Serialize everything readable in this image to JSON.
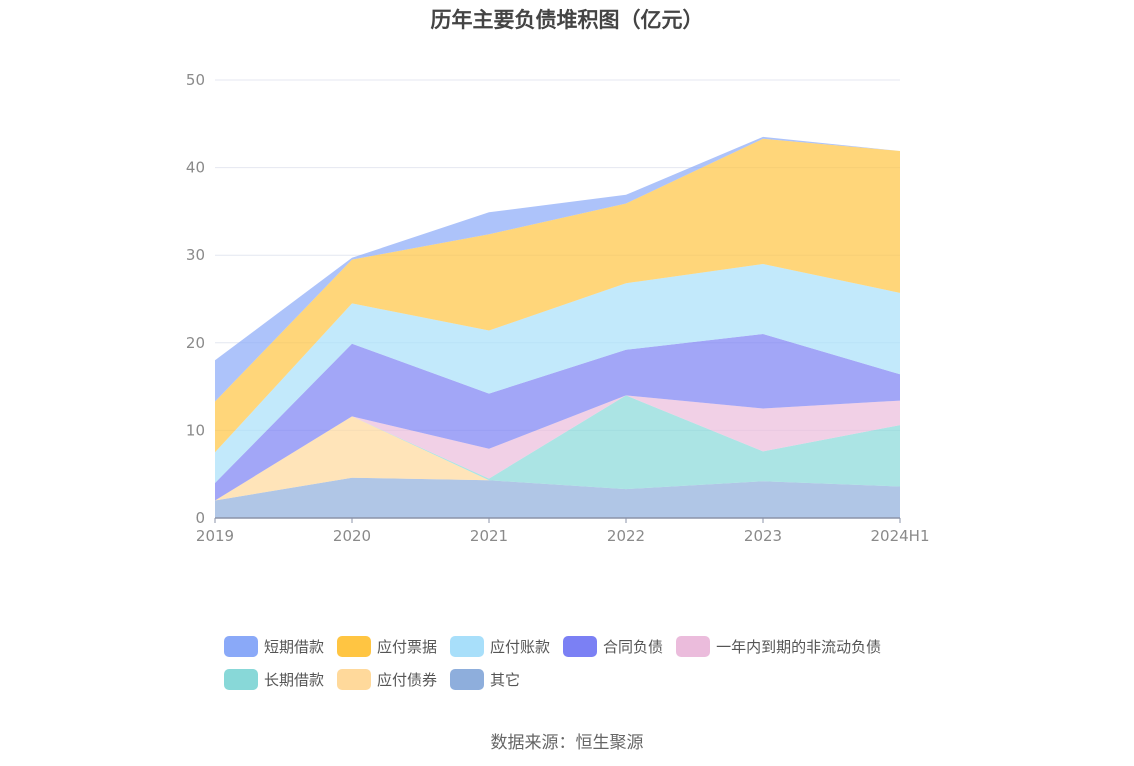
{
  "chart_data": {
    "type": "area",
    "stacked": true,
    "title": "历年主要负债堆积图（亿元）",
    "categories": [
      "2019",
      "2020",
      "2021",
      "2022",
      "2023",
      "2024H1"
    ],
    "y_ticks": [
      "0",
      "10",
      "20",
      "30",
      "40",
      "50"
    ],
    "ylim": [
      0,
      50
    ],
    "grid": true,
    "legend_position": "bottom",
    "series": [
      {
        "name": "其它",
        "color": "#8eaedc",
        "values": [
          2.0,
          4.6,
          4.3,
          3.3,
          4.2,
          3.6
        ]
      },
      {
        "name": "应付债券",
        "color": "#ffd99b",
        "values": [
          0.0,
          7.0,
          0.0,
          0.0,
          0.0,
          0.0
        ]
      },
      {
        "name": "长期借款",
        "color": "#88d8d8",
        "values": [
          0.0,
          0.0,
          0.2,
          10.7,
          3.4,
          7.0
        ]
      },
      {
        "name": "一年内到期的非流动负债",
        "color": "#ebbcdc",
        "values": [
          0.0,
          0.0,
          3.4,
          0.0,
          4.9,
          2.8
        ]
      },
      {
        "name": "合同负债",
        "color": "#7b80f4",
        "values": [
          2.0,
          8.3,
          6.3,
          5.2,
          8.5,
          3.0
        ]
      },
      {
        "name": "应付账款",
        "color": "#a8dffa",
        "values": [
          3.5,
          4.6,
          7.2,
          7.6,
          8.0,
          9.3
        ]
      },
      {
        "name": "应付票据",
        "color": "#ffc542",
        "values": [
          5.8,
          5.0,
          11.0,
          9.1,
          14.3,
          16.2
        ]
      },
      {
        "name": "短期借款",
        "color": "#8aa9f8",
        "values": [
          4.7,
          0.2,
          2.5,
          1.0,
          0.2,
          0.0
        ]
      }
    ],
    "legend_order": [
      "短期借款",
      "应付票据",
      "应付账款",
      "合同负债",
      "一年内到期的非流动负债",
      "长期借款",
      "应付债券",
      "其它"
    ]
  },
  "source": "数据来源：恒生聚源"
}
